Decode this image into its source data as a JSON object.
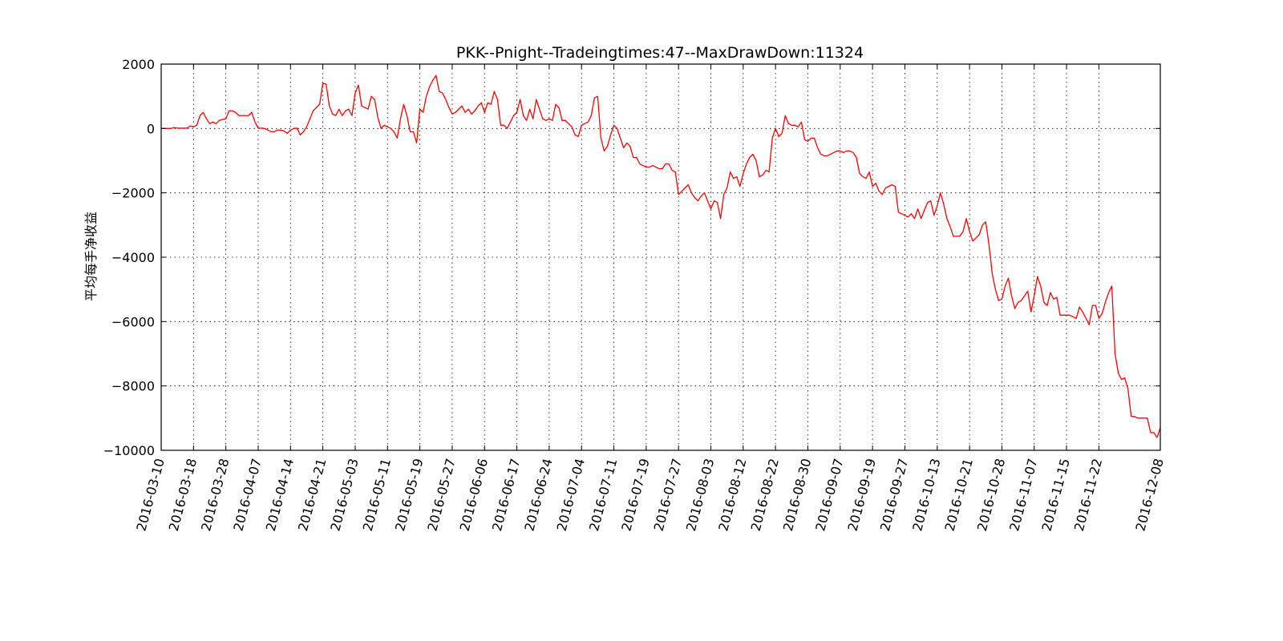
{
  "chart_data": {
    "type": "line",
    "title": "PKK--Pnight--Tradeingtimes:47--MaxDrawDown:11324",
    "xlabel": "",
    "ylabel": "平均每手净收益",
    "ylim": [
      -10000,
      2000
    ],
    "yticks": [
      2000,
      0,
      -2000,
      -4000,
      -6000,
      -8000,
      -10000
    ],
    "ytick_labels": [
      "2000",
      "0",
      "−2000",
      "−4000",
      "−6000",
      "−8000",
      "−10000"
    ],
    "xticks": [
      "2016-03-10",
      "2016-03-18",
      "2016-03-28",
      "2016-04-07",
      "2016-04-14",
      "2016-04-21",
      "2016-05-03",
      "2016-05-11",
      "2016-05-19",
      "2016-05-27",
      "2016-06-06",
      "2016-06-17",
      "2016-06-24",
      "2016-07-04",
      "2016-07-11",
      "2016-07-19",
      "2016-07-27",
      "2016-08-03",
      "2016-08-12",
      "2016-08-22",
      "2016-08-30",
      "2016-09-07",
      "2016-09-19",
      "2016-09-27",
      "2016-10-13",
      "2016-10-21",
      "2016-10-28",
      "2016-11-07",
      "2016-11-15",
      "2016-11-22",
      "2016-12-08"
    ],
    "xtick_index": [
      0,
      10,
      20,
      30,
      40,
      50,
      60,
      70,
      80,
      90,
      100,
      110,
      120,
      130,
      140,
      150,
      160,
      170,
      180,
      190,
      200,
      210,
      220,
      230,
      240,
      250,
      260,
      270,
      280,
      290,
      309
    ],
    "grid": true,
    "legend": "none",
    "series_color": "#ff0000",
    "series": [
      {
        "x_index_max": 309,
        "points": [
          [
            0,
            0
          ],
          [
            1,
            0
          ],
          [
            2,
            0
          ],
          [
            3,
            0
          ],
          [
            4,
            30
          ],
          [
            5,
            10
          ],
          [
            6,
            10
          ],
          [
            7,
            10
          ],
          [
            8,
            10
          ],
          [
            9,
            80
          ],
          [
            10,
            50
          ],
          [
            11,
            100
          ],
          [
            12,
            400
          ],
          [
            13,
            500
          ],
          [
            14,
            300
          ],
          [
            15,
            150
          ],
          [
            16,
            200
          ],
          [
            17,
            150
          ],
          [
            18,
            250
          ],
          [
            19,
            280
          ],
          [
            20,
            300
          ],
          [
            21,
            550
          ],
          [
            22,
            550
          ],
          [
            23,
            500
          ],
          [
            24,
            400
          ],
          [
            25,
            400
          ],
          [
            26,
            400
          ],
          [
            27,
            400
          ],
          [
            28,
            500
          ],
          [
            29,
            200
          ],
          [
            30,
            10
          ],
          [
            31,
            10
          ],
          [
            32,
            0
          ],
          [
            33,
            -50
          ],
          [
            34,
            -100
          ],
          [
            35,
            -100
          ],
          [
            36,
            -50
          ],
          [
            37,
            -50
          ],
          [
            38,
            -80
          ],
          [
            39,
            -150
          ],
          [
            40,
            -50
          ],
          [
            41,
            0
          ],
          [
            42,
            10
          ],
          [
            43,
            -200
          ],
          [
            44,
            -100
          ],
          [
            45,
            50
          ],
          [
            46,
            300
          ],
          [
            47,
            550
          ],
          [
            48,
            650
          ],
          [
            49,
            750
          ],
          [
            50,
            1400
          ],
          [
            51,
            1380
          ],
          [
            52,
            700
          ],
          [
            53,
            450
          ],
          [
            54,
            400
          ],
          [
            55,
            600
          ],
          [
            56,
            400
          ],
          [
            57,
            550
          ],
          [
            58,
            600
          ],
          [
            59,
            400
          ],
          [
            60,
            1100
          ],
          [
            61,
            1350
          ],
          [
            62,
            700
          ],
          [
            63,
            650
          ],
          [
            64,
            600
          ],
          [
            65,
            1000
          ],
          [
            66,
            900
          ],
          [
            67,
            350
          ],
          [
            68,
            0
          ],
          [
            69,
            100
          ],
          [
            70,
            50
          ],
          [
            71,
            0
          ],
          [
            72,
            -100
          ],
          [
            73,
            -300
          ],
          [
            74,
            300
          ],
          [
            75,
            750
          ],
          [
            76,
            400
          ],
          [
            77,
            -100
          ],
          [
            78,
            -100
          ],
          [
            79,
            -450
          ],
          [
            80,
            600
          ],
          [
            81,
            500
          ],
          [
            82,
            1000
          ],
          [
            83,
            1300
          ],
          [
            84,
            1500
          ],
          [
            85,
            1650
          ],
          [
            86,
            1150
          ],
          [
            87,
            1100
          ],
          [
            88,
            900
          ],
          [
            89,
            650
          ],
          [
            90,
            450
          ],
          [
            91,
            500
          ],
          [
            92,
            600
          ],
          [
            93,
            700
          ],
          [
            94,
            500
          ],
          [
            95,
            600
          ],
          [
            96,
            450
          ],
          [
            97,
            550
          ],
          [
            98,
            700
          ],
          [
            99,
            800
          ],
          [
            100,
            500
          ],
          [
            101,
            800
          ],
          [
            102,
            750
          ],
          [
            103,
            1150
          ],
          [
            104,
            900
          ],
          [
            105,
            100
          ],
          [
            106,
            100
          ],
          [
            107,
            0
          ],
          [
            108,
            200
          ],
          [
            109,
            400
          ],
          [
            110,
            500
          ],
          [
            111,
            900
          ],
          [
            112,
            400
          ],
          [
            113,
            250
          ],
          [
            114,
            600
          ],
          [
            115,
            300
          ],
          [
            116,
            900
          ],
          [
            117,
            600
          ],
          [
            118,
            300
          ],
          [
            119,
            250
          ],
          [
            120,
            300
          ],
          [
            121,
            250
          ],
          [
            122,
            750
          ],
          [
            123,
            650
          ],
          [
            124,
            250
          ],
          [
            125,
            250
          ],
          [
            126,
            150
          ],
          [
            127,
            50
          ],
          [
            128,
            -200
          ],
          [
            129,
            -250
          ],
          [
            130,
            100
          ],
          [
            131,
            150
          ],
          [
            132,
            200
          ],
          [
            133,
            400
          ],
          [
            134,
            950
          ],
          [
            135,
            1000
          ],
          [
            136,
            -300
          ],
          [
            137,
            -700
          ],
          [
            138,
            -550
          ],
          [
            139,
            -200
          ],
          [
            140,
            100
          ],
          [
            141,
            0
          ],
          [
            142,
            -300
          ],
          [
            143,
            -600
          ],
          [
            144,
            -450
          ],
          [
            145,
            -550
          ],
          [
            146,
            -900
          ],
          [
            147,
            -900
          ],
          [
            148,
            -1100
          ],
          [
            149,
            -1150
          ],
          [
            150,
            -1200
          ],
          [
            151,
            -1200
          ],
          [
            152,
            -1150
          ],
          [
            153,
            -1200
          ],
          [
            154,
            -1250
          ],
          [
            155,
            -1250
          ],
          [
            156,
            -1100
          ],
          [
            157,
            -1100
          ],
          [
            158,
            -1300
          ],
          [
            159,
            -1350
          ],
          [
            160,
            -2050
          ],
          [
            161,
            -1950
          ],
          [
            162,
            -1850
          ],
          [
            163,
            -1750
          ],
          [
            164,
            -2000
          ],
          [
            165,
            -2150
          ],
          [
            166,
            -2250
          ],
          [
            167,
            -2100
          ],
          [
            168,
            -2000
          ],
          [
            169,
            -2250
          ],
          [
            170,
            -2500
          ],
          [
            171,
            -2250
          ],
          [
            172,
            -2300
          ],
          [
            173,
            -2800
          ],
          [
            174,
            -2050
          ],
          [
            175,
            -1850
          ],
          [
            176,
            -1350
          ],
          [
            177,
            -1550
          ],
          [
            178,
            -1500
          ],
          [
            179,
            -1800
          ],
          [
            180,
            -1400
          ],
          [
            181,
            -1100
          ],
          [
            182,
            -900
          ],
          [
            183,
            -800
          ],
          [
            184,
            -1000
          ],
          [
            185,
            -1500
          ],
          [
            186,
            -1450
          ],
          [
            187,
            -1300
          ],
          [
            188,
            -1350
          ],
          [
            189,
            -300
          ],
          [
            190,
            0
          ],
          [
            191,
            -250
          ],
          [
            192,
            -150
          ],
          [
            193,
            400
          ],
          [
            194,
            150
          ],
          [
            195,
            100
          ],
          [
            196,
            100
          ],
          [
            197,
            50
          ],
          [
            198,
            200
          ],
          [
            199,
            -350
          ],
          [
            200,
            -400
          ],
          [
            201,
            -300
          ],
          [
            202,
            -300
          ],
          [
            203,
            -600
          ],
          [
            204,
            -800
          ],
          [
            205,
            -850
          ],
          [
            206,
            -850
          ],
          [
            207,
            -800
          ],
          [
            208,
            -750
          ],
          [
            209,
            -700
          ],
          [
            210,
            -700
          ],
          [
            211,
            -750
          ],
          [
            212,
            -700
          ],
          [
            213,
            -700
          ],
          [
            214,
            -750
          ],
          [
            215,
            -900
          ],
          [
            216,
            -1400
          ],
          [
            217,
            -1500
          ],
          [
            218,
            -1550
          ],
          [
            219,
            -1350
          ],
          [
            220,
            -1800
          ],
          [
            221,
            -1700
          ],
          [
            222,
            -1950
          ],
          [
            223,
            -2050
          ],
          [
            224,
            -1850
          ],
          [
            225,
            -1800
          ],
          [
            226,
            -1750
          ],
          [
            227,
            -1800
          ],
          [
            228,
            -2600
          ],
          [
            229,
            -2650
          ],
          [
            230,
            -2700
          ],
          [
            231,
            -2750
          ],
          [
            232,
            -2650
          ],
          [
            233,
            -2800
          ],
          [
            234,
            -2500
          ],
          [
            235,
            -2800
          ],
          [
            236,
            -2550
          ],
          [
            237,
            -2300
          ],
          [
            238,
            -2250
          ],
          [
            239,
            -2700
          ],
          [
            240,
            -2400
          ],
          [
            241,
            -2000
          ],
          [
            242,
            -2350
          ],
          [
            243,
            -2800
          ],
          [
            244,
            -3050
          ],
          [
            245,
            -3350
          ],
          [
            246,
            -3350
          ],
          [
            247,
            -3350
          ],
          [
            248,
            -3200
          ],
          [
            249,
            -2800
          ],
          [
            250,
            -3200
          ],
          [
            251,
            -3500
          ],
          [
            252,
            -3400
          ],
          [
            253,
            -3300
          ],
          [
            254,
            -3000
          ],
          [
            255,
            -2900
          ],
          [
            256,
            -3600
          ],
          [
            257,
            -4500
          ],
          [
            258,
            -5000
          ],
          [
            259,
            -5350
          ],
          [
            260,
            -5300
          ],
          [
            261,
            -4900
          ],
          [
            262,
            -4650
          ],
          [
            263,
            -5200
          ],
          [
            264,
            -5600
          ],
          [
            265,
            -5400
          ],
          [
            266,
            -5350
          ],
          [
            267,
            -5200
          ],
          [
            268,
            -5050
          ],
          [
            269,
            -5700
          ],
          [
            270,
            -5200
          ],
          [
            271,
            -4600
          ],
          [
            272,
            -4900
          ],
          [
            273,
            -5400
          ],
          [
            274,
            -5500
          ],
          [
            275,
            -5100
          ],
          [
            276,
            -5300
          ],
          [
            277,
            -5250
          ],
          [
            278,
            -5800
          ],
          [
            279,
            -5800
          ],
          [
            280,
            -5800
          ],
          [
            281,
            -5800
          ],
          [
            282,
            -5850
          ],
          [
            283,
            -5900
          ],
          [
            284,
            -5550
          ],
          [
            285,
            -5700
          ],
          [
            286,
            -5900
          ],
          [
            287,
            -6100
          ],
          [
            288,
            -5500
          ],
          [
            289,
            -5500
          ],
          [
            290,
            -5900
          ],
          [
            291,
            -5750
          ],
          [
            292,
            -5400
          ],
          [
            293,
            -5100
          ],
          [
            294,
            -4900
          ],
          [
            295,
            -7000
          ],
          [
            296,
            -7600
          ],
          [
            297,
            -7800
          ],
          [
            298,
            -7750
          ],
          [
            299,
            -8100
          ],
          [
            300,
            -8950
          ],
          [
            301,
            -8950
          ],
          [
            302,
            -9000
          ],
          [
            303,
            -9000
          ],
          [
            304,
            -9000
          ],
          [
            305,
            -9000
          ],
          [
            306,
            -9450
          ],
          [
            307,
            -9450
          ],
          [
            308,
            -9600
          ],
          [
            309,
            -9300
          ]
        ]
      }
    ]
  }
}
